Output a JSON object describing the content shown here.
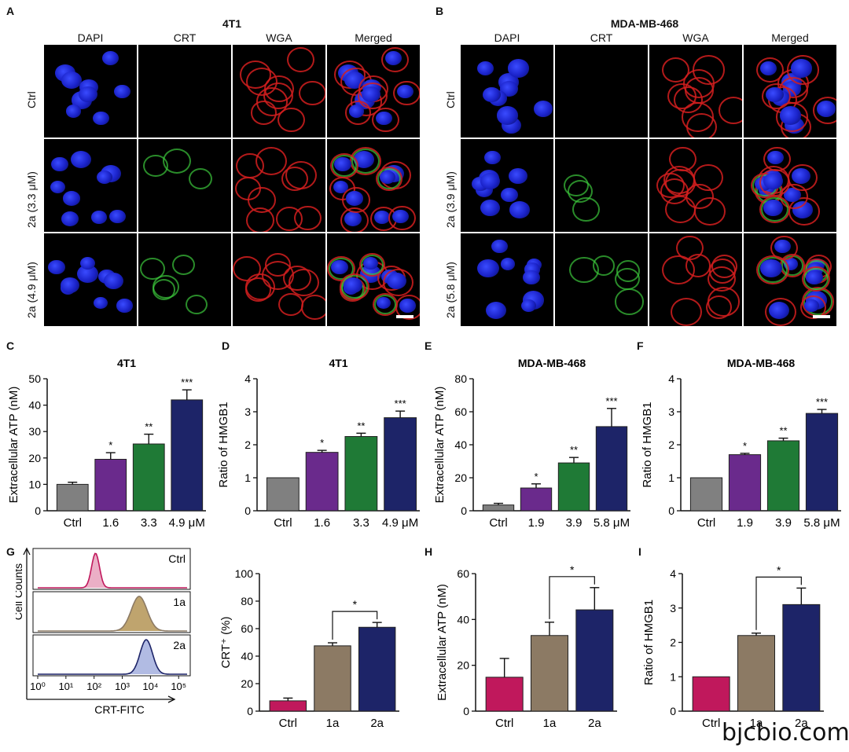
{
  "panels": {
    "A": {
      "letter": "A",
      "title": "4T1",
      "cols": [
        "DAPI",
        "CRT",
        "WGA",
        "Merged"
      ],
      "rows": [
        "Ctrl",
        "2a (3.3 μM)",
        "2a (4.9 μM)"
      ]
    },
    "B": {
      "letter": "B",
      "title": "MDA-MB-468",
      "cols": [
        "DAPI",
        "CRT",
        "WGA",
        "Merged"
      ],
      "rows": [
        "Ctrl",
        "2a (3.9 μM)",
        "2a (5.8 μM)"
      ]
    },
    "C": {
      "letter": "C"
    },
    "D": {
      "letter": "D"
    },
    "E": {
      "letter": "E"
    },
    "F": {
      "letter": "F"
    },
    "G": {
      "letter": "G",
      "hist_labels": [
        "Ctrl",
        "1a",
        "2a"
      ],
      "y_label": "Cell Counts",
      "x_label": "CRT-FITC",
      "x_ticks": [
        "10⁰",
        "10¹",
        "10²",
        "10³",
        "10⁴",
        "10⁵"
      ]
    },
    "H": {
      "letter": "H"
    },
    "I": {
      "letter": "I"
    }
  },
  "colors": {
    "ctrl": "#808080",
    "low": "#6a2a8c",
    "mid": "#1f7a36",
    "high": "#1d2468",
    "g_ctrl": "#c0185c",
    "g_1a": "#8c7a64",
    "g_2a": "#1d2468"
  },
  "chart_data": [
    {
      "id": "C",
      "type": "bar",
      "title": "4T1",
      "ylabel": "Extracellular ATP (nM)",
      "categories": [
        "Ctrl",
        "1.6",
        "3.3",
        "4.9 μM"
      ],
      "values": [
        10,
        19.5,
        25.3,
        42
      ],
      "errors": [
        0.8,
        2.5,
        3.7,
        3.8
      ],
      "significance": [
        "",
        "*",
        "**",
        "***"
      ],
      "ylim": [
        0,
        50
      ],
      "yticks": [
        0,
        10,
        20,
        30,
        40,
        50
      ]
    },
    {
      "id": "D",
      "type": "bar",
      "title": "4T1",
      "ylabel": "Ratio of HMGB1",
      "categories": [
        "Ctrl",
        "1.6",
        "3.3",
        "4.9 μM"
      ],
      "values": [
        1.0,
        1.77,
        2.25,
        2.82
      ],
      "errors": [
        0,
        0.06,
        0.1,
        0.2
      ],
      "significance": [
        "",
        "*",
        "**",
        "***"
      ],
      "ylim": [
        0,
        4
      ],
      "yticks": [
        0,
        1,
        2,
        3,
        4
      ]
    },
    {
      "id": "E",
      "type": "bar",
      "title": "MDA-MB-468",
      "ylabel": "Extracellular ATP (nM)",
      "categories": [
        "Ctrl",
        "1.9",
        "3.9",
        "5.8 μM"
      ],
      "values": [
        3.5,
        13.8,
        29,
        51
      ],
      "errors": [
        1.0,
        2.5,
        3.3,
        11
      ],
      "significance": [
        "",
        "*",
        "**",
        "***"
      ],
      "ylim": [
        0,
        80
      ],
      "yticks": [
        0,
        20,
        40,
        60,
        80
      ]
    },
    {
      "id": "F",
      "type": "bar",
      "title": "MDA-MB-468",
      "ylabel": "Ratio of HMGB1",
      "categories": [
        "Ctrl",
        "1.9",
        "3.9",
        "5.8 μM"
      ],
      "values": [
        1.0,
        1.7,
        2.12,
        2.95
      ],
      "errors": [
        0,
        0.04,
        0.08,
        0.12
      ],
      "significance": [
        "",
        "*",
        "**",
        "***"
      ],
      "ylim": [
        0,
        4
      ],
      "yticks": [
        0,
        1,
        2,
        3,
        4
      ]
    },
    {
      "id": "G2",
      "type": "bar",
      "title": "",
      "ylabel": "CRT⁺ (%)",
      "categories": [
        "Ctrl",
        "1a",
        "2a"
      ],
      "values": [
        7.5,
        47.5,
        61
      ],
      "errors": [
        2,
        2.2,
        3.5
      ],
      "ylim": [
        0,
        100
      ],
      "yticks": [
        0,
        20,
        40,
        60,
        80,
        100
      ],
      "bracket": {
        "from": 1,
        "to": 2,
        "label": "*"
      }
    },
    {
      "id": "H",
      "type": "bar",
      "title": "",
      "ylabel": "Extracellular ATP (nM)",
      "categories": [
        "Ctrl",
        "1a",
        "2a"
      ],
      "values": [
        14.8,
        33,
        44.2
      ],
      "errors": [
        8.2,
        5.8,
        9.7
      ],
      "ylim": [
        0,
        60
      ],
      "yticks": [
        0,
        20,
        40,
        60
      ],
      "bracket": {
        "from": 1,
        "to": 2,
        "label": "*"
      }
    },
    {
      "id": "I",
      "type": "bar",
      "title": "",
      "ylabel": "Ratio of HMGB1",
      "categories": [
        "Ctrl",
        "1a",
        "2a"
      ],
      "values": [
        1.0,
        2.2,
        3.1
      ],
      "errors": [
        0,
        0.07,
        0.48
      ],
      "ylim": [
        0,
        4
      ],
      "yticks": [
        0,
        1,
        2,
        3,
        4
      ],
      "bracket": {
        "from": 1,
        "to": 2,
        "label": "*"
      }
    }
  ],
  "watermark": "bjcbio.com"
}
